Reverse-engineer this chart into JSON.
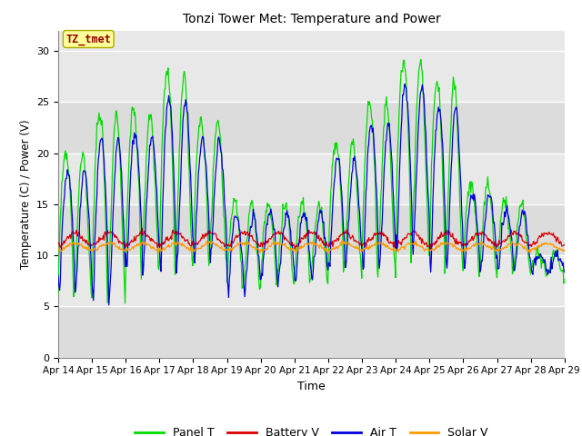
{
  "title": "Tonzi Tower Met: Temperature and Power",
  "xlabel": "Time",
  "ylabel": "Temperature (C) / Power (V)",
  "ylim": [
    0,
    32
  ],
  "yticks": [
    0,
    5,
    10,
    15,
    20,
    25,
    30
  ],
  "x_tick_labels": [
    "Apr 14",
    "Apr 15",
    "Apr 16",
    "Apr 17",
    "Apr 18",
    "Apr 19",
    "Apr 20",
    "Apr 21",
    "Apr 22",
    "Apr 23",
    "Apr 24",
    "Apr 25",
    "Apr 26",
    "Apr 27",
    "Apr 28",
    "Apr 29"
  ],
  "colors": {
    "panel_t": "#00DD00",
    "battery_v": "#DD0000",
    "air_t": "#0000DD",
    "solar_v": "#FF9900"
  },
  "plot_bg": "#E8E8E8",
  "band_color": "#D0D0D0",
  "annotation_text": "TZ_tmet",
  "annotation_color": "#990000",
  "annotation_bg": "#FFFF99",
  "annotation_edge": "#AAAA00",
  "legend_labels": [
    "Panel T",
    "Battery V",
    "Air T",
    "Solar V"
  ],
  "n_days": 15,
  "n_per_day": 48,
  "peak_vals": [
    20,
    24,
    24,
    28,
    23,
    15,
    15,
    15,
    21,
    25,
    29,
    27,
    17,
    15,
    10
  ],
  "trough_vals": [
    6,
    5,
    8,
    8,
    9,
    6,
    7,
    7,
    8,
    8,
    10,
    8,
    8,
    8,
    8
  ],
  "seed": 42
}
